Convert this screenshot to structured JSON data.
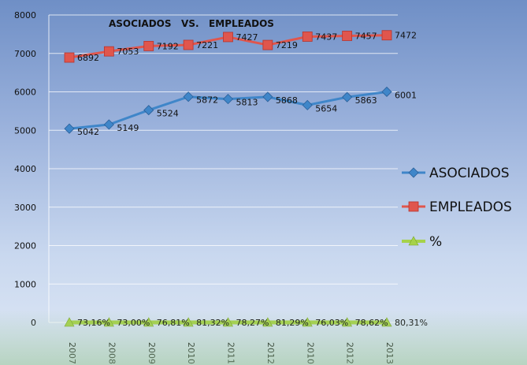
{
  "chart_data": {
    "type": "line",
    "title": "ASOCIADOS   VS.   EMPLEADOS",
    "ylim": [
      0,
      8000
    ],
    "yticks": [
      0,
      1000,
      2000,
      3000,
      4000,
      5000,
      6000,
      7000,
      8000
    ],
    "categories": [
      "2007",
      "2008",
      "2009",
      "2010",
      "2011",
      "2012",
      "2010",
      "2012",
      "2013"
    ],
    "series": [
      {
        "name": "ASOCIADOS",
        "color": "#3f86c9",
        "marker": "diamond",
        "values": [
          5042,
          5149,
          5524,
          5872,
          5813,
          5868,
          5654,
          5863,
          6001
        ],
        "labels": [
          "5042",
          "5149",
          "5524",
          "5872",
          "5813",
          "5868",
          "5654",
          "5863",
          "6001"
        ]
      },
      {
        "name": "EMPLEADOS",
        "color": "#e0564d",
        "marker": "square",
        "values": [
          6892,
          7053,
          7192,
          7221,
          7427,
          7219,
          7437,
          7457,
          7472
        ],
        "labels": [
          "6892",
          "7053",
          "7192",
          "7221",
          "7427",
          "7219",
          "7437",
          "7457",
          "7472"
        ]
      },
      {
        "name": "%",
        "color": "#a6d24a",
        "marker": "triangle",
        "values": [
          0.7316,
          0.73,
          0.7681,
          0.8132,
          0.7827,
          0.8129,
          0.7603,
          0.7862,
          0.8031
        ],
        "labels": [
          "73,16%",
          "73,00%",
          "76,81%",
          "81,32%",
          "78,27%",
          "81,29%",
          "76,03%",
          "78,62%",
          "80,31%"
        ]
      }
    ],
    "legend": "right",
    "grid": true
  }
}
